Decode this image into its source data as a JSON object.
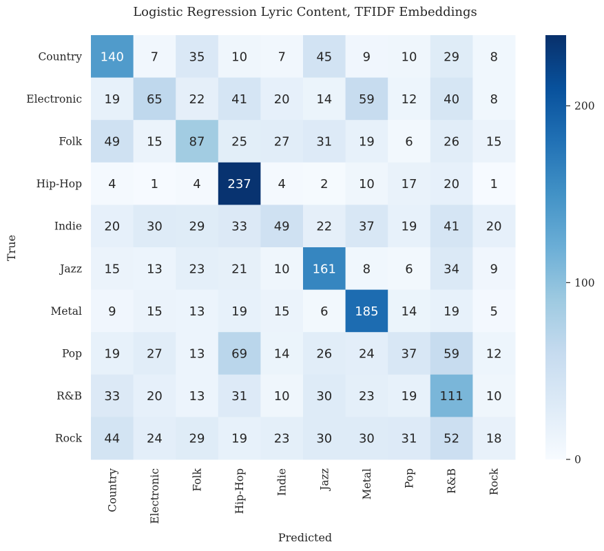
{
  "chart_data": {
    "type": "heatmap",
    "title": "Logistic Regression Lyric Content, TFIDF Embeddings",
    "xlabel": "Predicted",
    "ylabel": "True",
    "x_categories": [
      "Country",
      "Electronic",
      "Folk",
      "Hip-Hop",
      "Indie",
      "Jazz",
      "Metal",
      "Pop",
      "R&B",
      "Rock"
    ],
    "y_categories": [
      "Country",
      "Electronic",
      "Folk",
      "Hip-Hop",
      "Indie",
      "Jazz",
      "Metal",
      "Pop",
      "R&B",
      "Rock"
    ],
    "values": [
      [
        140,
        7,
        35,
        10,
        7,
        45,
        9,
        10,
        29,
        8
      ],
      [
        19,
        65,
        22,
        41,
        20,
        14,
        59,
        12,
        40,
        8
      ],
      [
        49,
        15,
        87,
        25,
        27,
        31,
        19,
        6,
        26,
        15
      ],
      [
        4,
        1,
        4,
        237,
        4,
        2,
        10,
        17,
        20,
        1
      ],
      [
        20,
        30,
        29,
        33,
        49,
        22,
        37,
        19,
        41,
        20
      ],
      [
        15,
        13,
        23,
        21,
        10,
        161,
        8,
        6,
        34,
        9
      ],
      [
        9,
        15,
        13,
        19,
        15,
        6,
        185,
        14,
        19,
        5
      ],
      [
        19,
        27,
        13,
        69,
        14,
        26,
        24,
        37,
        59,
        12
      ],
      [
        33,
        20,
        13,
        31,
        10,
        30,
        23,
        19,
        111,
        10
      ],
      [
        44,
        24,
        29,
        19,
        23,
        30,
        30,
        31,
        52,
        18
      ]
    ],
    "colormap": "Blues",
    "colorbar": {
      "range": [
        0,
        240
      ],
      "ticks": [
        "0",
        "100",
        "200"
      ]
    },
    "annotations": true,
    "grid": false,
    "legend": "none"
  }
}
